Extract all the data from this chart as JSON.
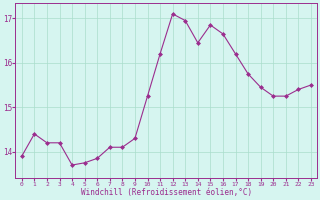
{
  "x": [
    0,
    1,
    2,
    3,
    4,
    5,
    6,
    7,
    8,
    9,
    10,
    11,
    12,
    13,
    14,
    15,
    16,
    17,
    18,
    19,
    20,
    21,
    22,
    23
  ],
  "y": [
    13.9,
    14.4,
    14.2,
    14.2,
    13.7,
    13.75,
    13.85,
    14.1,
    14.1,
    14.3,
    15.25,
    16.2,
    17.1,
    16.95,
    16.45,
    16.85,
    16.65,
    16.2,
    15.75,
    15.45,
    15.25,
    15.25,
    15.4,
    15.5
  ],
  "line_color": "#9B2D8E",
  "marker": "D",
  "marker_size": 2.0,
  "bg_color": "#D6F5F0",
  "grid_color": "#AADDCC",
  "xlabel": "Windchill (Refroidissement éolien,°C)",
  "xlabel_color": "#9B2D8E",
  "tick_color": "#9B2D8E",
  "ylim": [
    13.4,
    17.35
  ],
  "yticks": [
    14,
    15,
    16,
    17
  ],
  "xticks": [
    0,
    1,
    2,
    3,
    4,
    5,
    6,
    7,
    8,
    9,
    10,
    11,
    12,
    13,
    14,
    15,
    16,
    17,
    18,
    19,
    20,
    21,
    22,
    23
  ],
  "spine_color": "#9B2D8E",
  "figsize": [
    3.2,
    2.0
  ],
  "dpi": 100
}
